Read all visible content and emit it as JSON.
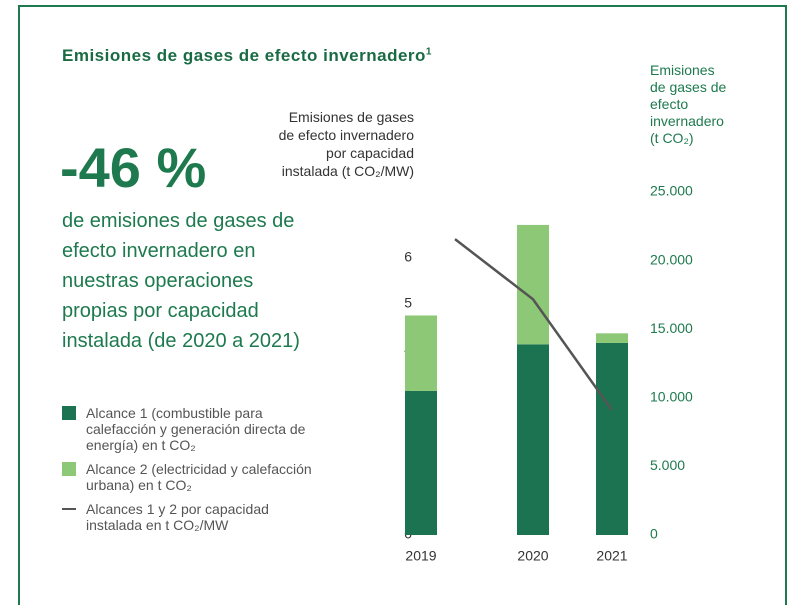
{
  "title": "Emisiones de gases de efecto invernadero",
  "title_note": "1",
  "highlight": {
    "value": "-46 %",
    "text": "de emisiones de gases de efecto invernadero en nuestras operaciones propias por capacidad instalada (de 2020 a 2021)"
  },
  "chart_data": {
    "type": "bar",
    "stacked": true,
    "categories": [
      "2019",
      "2020",
      "2021"
    ],
    "y_label": "Emisiones de gases de efecto invernadero por capacidad instalada (t CO₂/MW)",
    "y2_label": "Emisiones de gases de efecto invernadero (t CO₂)",
    "ylim": [
      0,
      7.42
    ],
    "yticks": [
      0,
      1,
      2,
      3,
      4,
      5,
      6
    ],
    "y2lim": [
      0,
      25000
    ],
    "y2ticks": [
      0,
      {
        "value": 5000,
        "label": "5.000"
      },
      {
        "value": 10000,
        "label": "10.000"
      },
      {
        "value": 15000,
        "label": "15.000"
      },
      {
        "value": 20000,
        "label": "20.000"
      },
      {
        "value": 25000,
        "label": "25.000"
      }
    ],
    "series": [
      {
        "name": "Alcance 1 (combustible para calefacción y generación directa de energía) en t CO₂",
        "color": "#1c7352",
        "axis": "y2",
        "values": [
          10500,
          13900,
          14000
        ]
      },
      {
        "name": "Alcance 2 (electricidad y calefacción urbana) en t CO₂",
        "color": "#8cc876",
        "axis": "y2",
        "values": [
          5500,
          8700,
          700
        ]
      },
      {
        "name": "Alcances 1 y 2 por capacidad instalada en t CO₂/MW",
        "type": "line",
        "color": "#555555",
        "values": [
          6.4,
          5.1,
          2.7
        ]
      }
    ]
  }
}
